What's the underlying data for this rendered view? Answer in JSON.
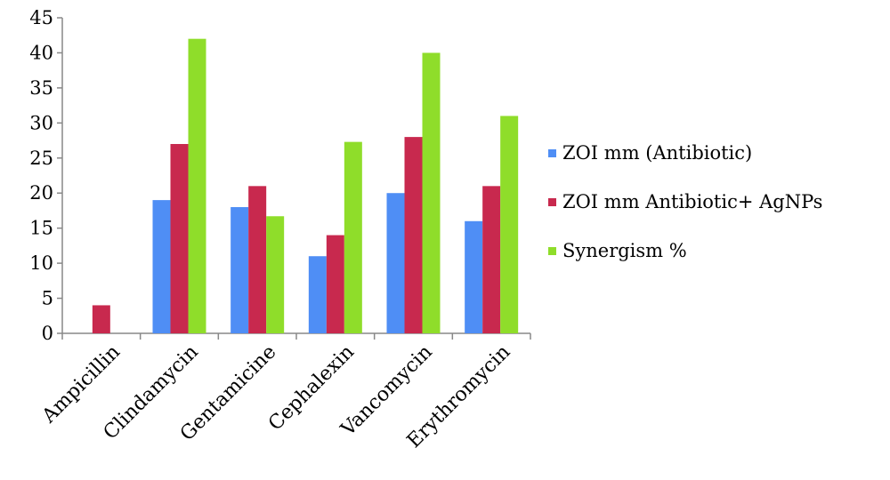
{
  "chart_data": {
    "type": "bar",
    "categories": [
      "Ampicillin",
      "Clindamycin",
      "Gentamicine",
      "Cephalexin",
      "Vancomycin",
      "Erythromycin"
    ],
    "series": [
      {
        "name": "ZOI mm (Antibiotic)",
        "color": "#4f8ef5",
        "values": [
          0,
          19,
          18,
          11,
          20,
          16
        ]
      },
      {
        "name": "ZOI mm Antibiotic+ AgNPs",
        "color": "#c8294e",
        "values": [
          4,
          27,
          21,
          14,
          28,
          21
        ]
      },
      {
        "name": "Synergism %",
        "color": "#8fdd2a",
        "values": [
          0,
          42,
          16.7,
          27.3,
          40,
          31
        ]
      }
    ],
    "ylim": [
      0,
      45
    ],
    "yticks": [
      0,
      5,
      10,
      15,
      20,
      25,
      30,
      35,
      40,
      45
    ],
    "grid": false,
    "legend_position": "right",
    "title": "",
    "xlabel": "",
    "ylabel": ""
  }
}
